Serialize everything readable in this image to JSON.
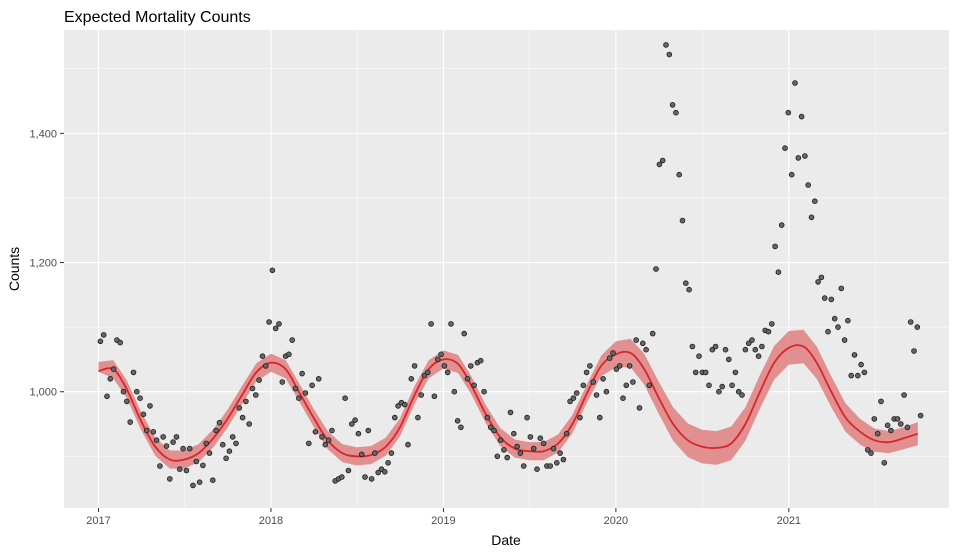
{
  "chart_data": {
    "type": "scatter",
    "title": "Expected Mortality Counts",
    "xlabel": "Date",
    "ylabel": "Counts",
    "x_is_date": true,
    "x_ticks": [
      "2017-01-01",
      "2018-01-01",
      "2019-01-01",
      "2020-01-01",
      "2021-01-01"
    ],
    "x_tick_labels": [
      "2017",
      "2018",
      "2019",
      "2020",
      "2021"
    ],
    "y_ticks": [
      1000,
      1200,
      1400
    ],
    "y_tick_labels": [
      "1,000",
      "1,200",
      "1,400"
    ],
    "xlim": [
      "2016-10-20",
      "2021-12-06"
    ],
    "ylim": [
      820,
      1560
    ],
    "grid": true,
    "colors": {
      "panel": "#ebebeb",
      "grid": "#ffffff",
      "point_fill": "#666666",
      "point_stroke": "#1a1a1a",
      "smooth_line": "#d7262b",
      "ribbon": "#e07f7f"
    },
    "points": [
      [
        "2017-01-05",
        1078
      ],
      [
        "2017-01-12",
        1088
      ],
      [
        "2017-01-19",
        993
      ],
      [
        "2017-01-26",
        1020
      ],
      [
        "2017-02-02",
        1035
      ],
      [
        "2017-02-09",
        1080
      ],
      [
        "2017-02-16",
        1076
      ],
      [
        "2017-02-23",
        1000
      ],
      [
        "2017-03-02",
        985
      ],
      [
        "2017-03-09",
        953
      ],
      [
        "2017-03-16",
        1030
      ],
      [
        "2017-03-23",
        1000
      ],
      [
        "2017-03-30",
        990
      ],
      [
        "2017-04-06",
        965
      ],
      [
        "2017-04-13",
        940
      ],
      [
        "2017-04-20",
        978
      ],
      [
        "2017-04-27",
        938
      ],
      [
        "2017-05-04",
        925
      ],
      [
        "2017-05-11",
        885
      ],
      [
        "2017-05-18",
        930
      ],
      [
        "2017-05-25",
        916
      ],
      [
        "2017-06-01",
        865
      ],
      [
        "2017-06-08",
        922
      ],
      [
        "2017-06-15",
        930
      ],
      [
        "2017-06-22",
        880
      ],
      [
        "2017-06-29",
        912
      ],
      [
        "2017-07-06",
        878
      ],
      [
        "2017-07-13",
        912
      ],
      [
        "2017-07-20",
        855
      ],
      [
        "2017-07-27",
        892
      ],
      [
        "2017-08-03",
        860
      ],
      [
        "2017-08-10",
        886
      ],
      [
        "2017-08-17",
        920
      ],
      [
        "2017-08-24",
        905
      ],
      [
        "2017-08-31",
        863
      ],
      [
        "2017-09-07",
        940
      ],
      [
        "2017-09-14",
        952
      ],
      [
        "2017-09-21",
        918
      ],
      [
        "2017-09-28",
        897
      ],
      [
        "2017-10-05",
        908
      ],
      [
        "2017-10-12",
        930
      ],
      [
        "2017-10-19",
        920
      ],
      [
        "2017-10-26",
        975
      ],
      [
        "2017-11-02",
        960
      ],
      [
        "2017-11-09",
        985
      ],
      [
        "2017-11-16",
        950
      ],
      [
        "2017-11-23",
        1005
      ],
      [
        "2017-11-30",
        995
      ],
      [
        "2017-12-07",
        1018
      ],
      [
        "2017-12-14",
        1055
      ],
      [
        "2017-12-21",
        1040
      ],
      [
        "2017-12-28",
        1108
      ],
      [
        "2018-01-04",
        1188
      ],
      [
        "2018-01-11",
        1098
      ],
      [
        "2018-01-18",
        1105
      ],
      [
        "2018-01-25",
        1015
      ],
      [
        "2018-02-01",
        1055
      ],
      [
        "2018-02-08",
        1058
      ],
      [
        "2018-02-15",
        1080
      ],
      [
        "2018-02-22",
        1005
      ],
      [
        "2018-03-01",
        990
      ],
      [
        "2018-03-08",
        1028
      ],
      [
        "2018-03-15",
        998
      ],
      [
        "2018-03-22",
        920
      ],
      [
        "2018-03-29",
        1010
      ],
      [
        "2018-04-05",
        938
      ],
      [
        "2018-04-12",
        1020
      ],
      [
        "2018-04-19",
        930
      ],
      [
        "2018-04-26",
        918
      ],
      [
        "2018-05-03",
        925
      ],
      [
        "2018-05-10",
        940
      ],
      [
        "2018-05-17",
        862
      ],
      [
        "2018-05-24",
        865
      ],
      [
        "2018-05-31",
        868
      ],
      [
        "2018-06-07",
        990
      ],
      [
        "2018-06-14",
        878
      ],
      [
        "2018-06-21",
        950
      ],
      [
        "2018-06-28",
        956
      ],
      [
        "2018-07-05",
        935
      ],
      [
        "2018-07-12",
        903
      ],
      [
        "2018-07-19",
        868
      ],
      [
        "2018-07-26",
        940
      ],
      [
        "2018-08-02",
        865
      ],
      [
        "2018-08-09",
        905
      ],
      [
        "2018-08-16",
        875
      ],
      [
        "2018-08-23",
        880
      ],
      [
        "2018-08-30",
        876
      ],
      [
        "2018-09-06",
        890
      ],
      [
        "2018-09-13",
        905
      ],
      [
        "2018-09-20",
        960
      ],
      [
        "2018-09-27",
        978
      ],
      [
        "2018-10-04",
        983
      ],
      [
        "2018-10-11",
        980
      ],
      [
        "2018-10-18",
        918
      ],
      [
        "2018-10-25",
        1020
      ],
      [
        "2018-11-01",
        1040
      ],
      [
        "2018-11-08",
        960
      ],
      [
        "2018-11-15",
        995
      ],
      [
        "2018-11-22",
        1025
      ],
      [
        "2018-11-29",
        1030
      ],
      [
        "2018-12-06",
        1105
      ],
      [
        "2018-12-13",
        993
      ],
      [
        "2018-12-20",
        1050
      ],
      [
        "2018-12-27",
        1058
      ],
      [
        "2019-01-03",
        1040
      ],
      [
        "2019-01-10",
        1030
      ],
      [
        "2019-01-17",
        1105
      ],
      [
        "2019-01-24",
        1000
      ],
      [
        "2019-01-31",
        955
      ],
      [
        "2019-02-07",
        945
      ],
      [
        "2019-02-14",
        1090
      ],
      [
        "2019-02-21",
        1020
      ],
      [
        "2019-02-28",
        1040
      ],
      [
        "2019-03-07",
        1010
      ],
      [
        "2019-03-14",
        1045
      ],
      [
        "2019-03-21",
        1048
      ],
      [
        "2019-03-28",
        1000
      ],
      [
        "2019-04-04",
        960
      ],
      [
        "2019-04-11",
        945
      ],
      [
        "2019-04-18",
        940
      ],
      [
        "2019-04-25",
        900
      ],
      [
        "2019-05-02",
        925
      ],
      [
        "2019-05-09",
        910
      ],
      [
        "2019-05-16",
        898
      ],
      [
        "2019-05-23",
        968
      ],
      [
        "2019-05-30",
        935
      ],
      [
        "2019-06-06",
        915
      ],
      [
        "2019-06-13",
        905
      ],
      [
        "2019-06-20",
        885
      ],
      [
        "2019-06-27",
        960
      ],
      [
        "2019-07-04",
        930
      ],
      [
        "2019-07-11",
        912
      ],
      [
        "2019-07-18",
        880
      ],
      [
        "2019-07-25",
        928
      ],
      [
        "2019-08-01",
        920
      ],
      [
        "2019-08-08",
        885
      ],
      [
        "2019-08-15",
        885
      ],
      [
        "2019-08-22",
        912
      ],
      [
        "2019-08-29",
        890
      ],
      [
        "2019-09-05",
        905
      ],
      [
        "2019-09-12",
        895
      ],
      [
        "2019-09-19",
        935
      ],
      [
        "2019-09-26",
        985
      ],
      [
        "2019-10-03",
        990
      ],
      [
        "2019-10-10",
        998
      ],
      [
        "2019-10-17",
        960
      ],
      [
        "2019-10-24",
        1010
      ],
      [
        "2019-10-31",
        1030
      ],
      [
        "2019-11-07",
        1040
      ],
      [
        "2019-11-14",
        1015
      ],
      [
        "2019-11-21",
        995
      ],
      [
        "2019-11-28",
        960
      ],
      [
        "2019-12-05",
        1020
      ],
      [
        "2019-12-12",
        1000
      ],
      [
        "2019-12-19",
        1052
      ],
      [
        "2019-12-26",
        1060
      ],
      [
        "2020-01-02",
        1035
      ],
      [
        "2020-01-09",
        1040
      ],
      [
        "2020-01-16",
        990
      ],
      [
        "2020-01-23",
        1010
      ],
      [
        "2020-01-30",
        1040
      ],
      [
        "2020-02-06",
        1015
      ],
      [
        "2020-02-13",
        1080
      ],
      [
        "2020-02-20",
        975
      ],
      [
        "2020-02-27",
        1075
      ],
      [
        "2020-03-05",
        1065
      ],
      [
        "2020-03-12",
        1010
      ],
      [
        "2020-03-19",
        1090
      ],
      [
        "2020-03-26",
        1190
      ],
      [
        "2020-04-02",
        1352
      ],
      [
        "2020-04-09",
        1358
      ],
      [
        "2020-04-16",
        1537
      ],
      [
        "2020-04-23",
        1522
      ],
      [
        "2020-04-30",
        1444
      ],
      [
        "2020-05-07",
        1432
      ],
      [
        "2020-05-14",
        1336
      ],
      [
        "2020-05-21",
        1265
      ],
      [
        "2020-05-28",
        1168
      ],
      [
        "2020-06-04",
        1158
      ],
      [
        "2020-06-11",
        1070
      ],
      [
        "2020-06-18",
        1030
      ],
      [
        "2020-06-25",
        1055
      ],
      [
        "2020-07-02",
        1030
      ],
      [
        "2020-07-09",
        1030
      ],
      [
        "2020-07-16",
        1010
      ],
      [
        "2020-07-23",
        1065
      ],
      [
        "2020-07-30",
        1070
      ],
      [
        "2020-08-06",
        1000
      ],
      [
        "2020-08-13",
        1008
      ],
      [
        "2020-08-20",
        1065
      ],
      [
        "2020-08-27",
        1050
      ],
      [
        "2020-09-03",
        1010
      ],
      [
        "2020-09-10",
        1030
      ],
      [
        "2020-09-17",
        1000
      ],
      [
        "2020-09-24",
        995
      ],
      [
        "2020-10-01",
        1065
      ],
      [
        "2020-10-08",
        1075
      ],
      [
        "2020-10-15",
        1080
      ],
      [
        "2020-10-22",
        1065
      ],
      [
        "2020-10-29",
        1055
      ],
      [
        "2020-11-05",
        1070
      ],
      [
        "2020-11-12",
        1095
      ],
      [
        "2020-11-19",
        1093
      ],
      [
        "2020-11-26",
        1105
      ],
      [
        "2020-12-03",
        1225
      ],
      [
        "2020-12-10",
        1185
      ],
      [
        "2020-12-17",
        1258
      ],
      [
        "2020-12-24",
        1377
      ],
      [
        "2020-12-31",
        1432
      ],
      [
        "2021-01-07",
        1336
      ],
      [
        "2021-01-14",
        1478
      ],
      [
        "2021-01-21",
        1362
      ],
      [
        "2021-01-28",
        1426
      ],
      [
        "2021-02-04",
        1365
      ],
      [
        "2021-02-11",
        1320
      ],
      [
        "2021-02-18",
        1270
      ],
      [
        "2021-02-25",
        1295
      ],
      [
        "2021-03-04",
        1170
      ],
      [
        "2021-03-11",
        1177
      ],
      [
        "2021-03-18",
        1145
      ],
      [
        "2021-03-25",
        1093
      ],
      [
        "2021-04-01",
        1143
      ],
      [
        "2021-04-08",
        1113
      ],
      [
        "2021-04-15",
        1100
      ],
      [
        "2021-04-22",
        1160
      ],
      [
        "2021-04-29",
        1080
      ],
      [
        "2021-05-06",
        1110
      ],
      [
        "2021-05-13",
        1025
      ],
      [
        "2021-05-20",
        1057
      ],
      [
        "2021-05-27",
        1025
      ],
      [
        "2021-06-03",
        1042
      ],
      [
        "2021-06-10",
        1030
      ],
      [
        "2021-06-17",
        910
      ],
      [
        "2021-06-24",
        905
      ],
      [
        "2021-07-01",
        958
      ],
      [
        "2021-07-08",
        935
      ],
      [
        "2021-07-15",
        985
      ],
      [
        "2021-07-22",
        890
      ],
      [
        "2021-07-29",
        948
      ],
      [
        "2021-08-05",
        940
      ],
      [
        "2021-08-12",
        958
      ],
      [
        "2021-08-19",
        958
      ],
      [
        "2021-08-26",
        950
      ],
      [
        "2021-09-02",
        995
      ],
      [
        "2021-09-09",
        945
      ],
      [
        "2021-09-16",
        1108
      ],
      [
        "2021-09-23",
        1063
      ],
      [
        "2021-09-30",
        1100
      ],
      [
        "2021-10-07",
        963
      ]
    ],
    "smooth": [
      [
        "2017-01-01",
        1032
      ],
      [
        "2017-02-01",
        1035
      ],
      [
        "2017-03-01",
        1005
      ],
      [
        "2017-04-01",
        955
      ],
      [
        "2017-05-01",
        915
      ],
      [
        "2017-06-01",
        895
      ],
      [
        "2017-07-01",
        895
      ],
      [
        "2017-08-01",
        905
      ],
      [
        "2017-09-01",
        928
      ],
      [
        "2017-10-01",
        958
      ],
      [
        "2017-11-01",
        995
      ],
      [
        "2017-12-01",
        1030
      ],
      [
        "2018-01-01",
        1045
      ],
      [
        "2018-02-01",
        1035
      ],
      [
        "2018-03-01",
        1000
      ],
      [
        "2018-04-01",
        960
      ],
      [
        "2018-05-01",
        925
      ],
      [
        "2018-06-01",
        905
      ],
      [
        "2018-07-01",
        900
      ],
      [
        "2018-08-01",
        902
      ],
      [
        "2018-09-01",
        915
      ],
      [
        "2018-10-01",
        945
      ],
      [
        "2018-11-01",
        995
      ],
      [
        "2018-12-01",
        1035
      ],
      [
        "2019-01-01",
        1050
      ],
      [
        "2019-02-01",
        1043
      ],
      [
        "2019-03-01",
        1010
      ],
      [
        "2019-04-01",
        965
      ],
      [
        "2019-05-01",
        930
      ],
      [
        "2019-06-01",
        912
      ],
      [
        "2019-07-01",
        908
      ],
      [
        "2019-08-01",
        908
      ],
      [
        "2019-09-01",
        920
      ],
      [
        "2019-10-01",
        950
      ],
      [
        "2019-11-01",
        998
      ],
      [
        "2019-12-01",
        1040
      ],
      [
        "2020-01-01",
        1058
      ],
      [
        "2020-02-01",
        1060
      ],
      [
        "2020-03-01",
        1035
      ],
      [
        "2020-04-01",
        990
      ],
      [
        "2020-05-01",
        950
      ],
      [
        "2020-06-01",
        925
      ],
      [
        "2020-07-01",
        915
      ],
      [
        "2020-08-01",
        913
      ],
      [
        "2020-09-01",
        920
      ],
      [
        "2020-10-01",
        950
      ],
      [
        "2020-11-01",
        1000
      ],
      [
        "2020-12-01",
        1045
      ],
      [
        "2021-01-01",
        1068
      ],
      [
        "2021-02-01",
        1070
      ],
      [
        "2021-03-01",
        1045
      ],
      [
        "2021-04-01",
        1000
      ],
      [
        "2021-05-01",
        960
      ],
      [
        "2021-06-01",
        938
      ],
      [
        "2021-07-01",
        925
      ],
      [
        "2021-08-01",
        922
      ],
      [
        "2021-09-01",
        928
      ],
      [
        "2021-10-01",
        935
      ]
    ],
    "smooth_se": [
      [
        1,
        14
      ],
      [
        14,
        14
      ],
      [
        14,
        14
      ],
      [
        14,
        14
      ],
      [
        14,
        14
      ],
      [
        14,
        14
      ],
      [
        14,
        14
      ],
      [
        14,
        14
      ],
      [
        14,
        14
      ],
      [
        14,
        14
      ],
      [
        14,
        14
      ],
      [
        14,
        14
      ],
      [
        14,
        14
      ],
      [
        14,
        14
      ],
      [
        14,
        14
      ],
      [
        14,
        14
      ],
      [
        14,
        14
      ],
      [
        14,
        14
      ],
      [
        14,
        14
      ],
      [
        14,
        14
      ],
      [
        14,
        14
      ],
      [
        14,
        14
      ],
      [
        14,
        14
      ],
      [
        14,
        14
      ],
      [
        14,
        14
      ],
      [
        14,
        14
      ],
      [
        14,
        14
      ],
      [
        14,
        14
      ],
      [
        14,
        14
      ],
      [
        14,
        14
      ],
      [
        14,
        14
      ],
      [
        14,
        14
      ],
      [
        14,
        14
      ],
      [
        14,
        14
      ],
      [
        14,
        14
      ],
      [
        16,
        16
      ],
      [
        20,
        20
      ],
      [
        22,
        22
      ],
      [
        24,
        24
      ],
      [
        25,
        25
      ],
      [
        26,
        26
      ],
      [
        26,
        26
      ],
      [
        26,
        26
      ],
      [
        26,
        26
      ],
      [
        26,
        26
      ],
      [
        26,
        26
      ],
      [
        26,
        26
      ],
      [
        26,
        26
      ],
      [
        26,
        26
      ],
      [
        26,
        26
      ],
      [
        25,
        25
      ],
      [
        24,
        24
      ],
      [
        22,
        22
      ],
      [
        20,
        20
      ],
      [
        18,
        18
      ],
      [
        17,
        17
      ],
      [
        17,
        17
      ],
      [
        18,
        18
      ]
    ]
  }
}
